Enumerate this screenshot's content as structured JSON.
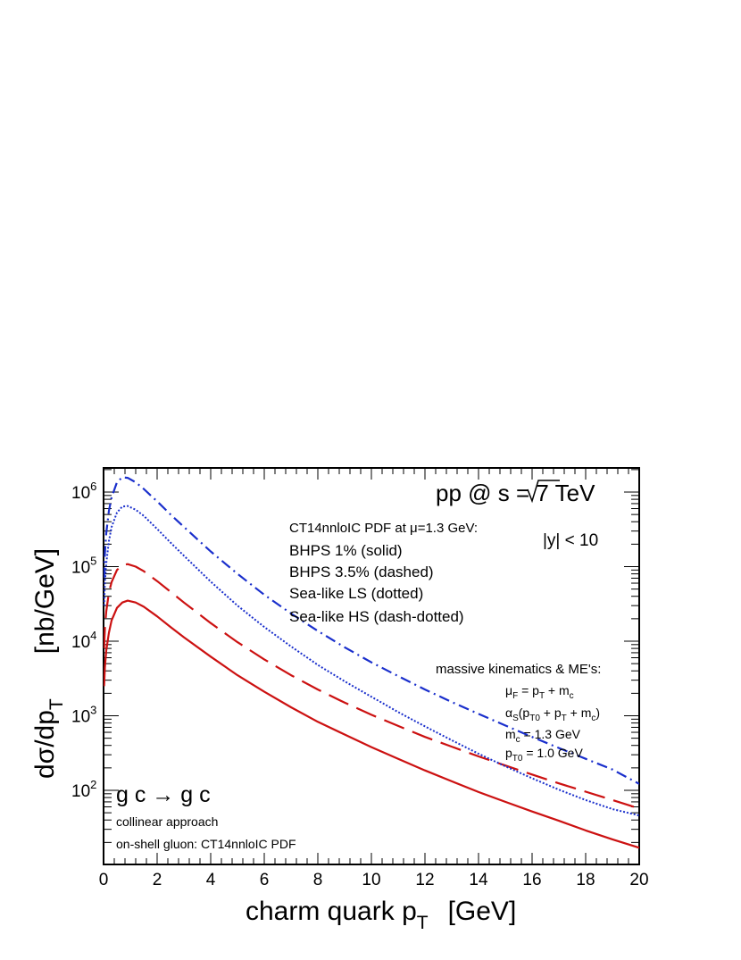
{
  "chart_data": {
    "type": "line",
    "title": "",
    "xlabel": "charm quark p",
    "xlabel_sub": "T",
    "xlabel_unit": "[GeV]",
    "ylabel": "dσ/dp",
    "ylabel_sub": "T",
    "ylabel_unit": "[nb/GeV]",
    "xlim": [
      0,
      20
    ],
    "ylim": [
      10,
      2000000
    ],
    "yscale": "log",
    "x_ticks": [
      "0",
      "2",
      "4",
      "6",
      "8",
      "10",
      "12",
      "14",
      "16",
      "18",
      "20"
    ],
    "y_ticks": [
      {
        "base": "10",
        "exp": "2",
        "value": 100
      },
      {
        "base": "10",
        "exp": "3",
        "value": 1000
      },
      {
        "base": "10",
        "exp": "4",
        "value": 10000
      },
      {
        "base": "10",
        "exp": "5",
        "value": 100000
      },
      {
        "base": "10",
        "exp": "6",
        "value": 1000000
      }
    ],
    "grid": false,
    "legend_position": "top-center",
    "series": [
      {
        "name": "BHPS 1% (solid)",
        "color": "#cc1111",
        "dash": "solid",
        "x": [
          0.02,
          0.05,
          0.1,
          0.2,
          0.3,
          0.5,
          0.7,
          0.9,
          1.2,
          1.5,
          2,
          2.5,
          3,
          4,
          5,
          6,
          7,
          8,
          9,
          10,
          11,
          12,
          13,
          14,
          15,
          16,
          17,
          18,
          19,
          20
        ],
        "y": [
          2500,
          4500,
          7500,
          13000,
          19000,
          28000,
          33000,
          35000,
          33000,
          29000,
          21500,
          15500,
          11300,
          6200,
          3500,
          2100,
          1300,
          830,
          560,
          380,
          265,
          185,
          132,
          95,
          70,
          52,
          39,
          29,
          22,
          17
        ]
      },
      {
        "name": "BHPS 3.5% (dashed)",
        "color": "#cc1111",
        "dash": "dashed",
        "x": [
          0.02,
          0.05,
          0.1,
          0.2,
          0.3,
          0.5,
          0.7,
          0.9,
          1.2,
          1.5,
          2,
          2.5,
          3,
          4,
          5,
          6,
          7,
          8,
          9,
          10,
          11,
          12,
          13,
          14,
          15,
          16,
          17,
          18,
          19,
          20
        ],
        "y": [
          8000,
          15000,
          25000,
          45000,
          62000,
          90000,
          105000,
          108000,
          100000,
          87000,
          64000,
          46000,
          33000,
          17500,
          9700,
          5700,
          3500,
          2250,
          1500,
          1030,
          730,
          520,
          385,
          285,
          215,
          163,
          124,
          96,
          74,
          57
        ]
      },
      {
        "name": "Sea-like LS (dotted)",
        "color": "#1a2fcc",
        "dash": "dotted",
        "x": [
          0.02,
          0.05,
          0.1,
          0.2,
          0.3,
          0.5,
          0.7,
          0.9,
          1.2,
          1.5,
          2,
          2.5,
          3,
          4,
          5,
          6,
          7,
          8,
          9,
          10,
          11,
          12,
          13,
          14,
          15,
          16,
          17,
          18,
          19,
          20
        ],
        "y": [
          30000,
          60000,
          110000,
          220000,
          340000,
          530000,
          640000,
          650000,
          580000,
          480000,
          320000,
          210000,
          140000,
          63000,
          30000,
          15500,
          8500,
          4800,
          2900,
          1800,
          1120,
          720,
          470,
          310,
          210,
          145,
          102,
          74,
          56,
          46
        ]
      },
      {
        "name": "Sea-like HS (dash-dotted)",
        "color": "#1a2fcc",
        "dash": "dash-dotted",
        "x": [
          0.02,
          0.05,
          0.1,
          0.2,
          0.3,
          0.5,
          0.7,
          0.9,
          1.2,
          1.5,
          2,
          2.5,
          3,
          4,
          5,
          6,
          7,
          8,
          9,
          10,
          11,
          12,
          13,
          14,
          15,
          16,
          17,
          18,
          19,
          20
        ],
        "y": [
          70000,
          150000,
          280000,
          560000,
          850000,
          1350000,
          1580000,
          1550000,
          1350000,
          1100000,
          750000,
          500000,
          340000,
          160000,
          80000,
          42000,
          23500,
          13700,
          8300,
          5200,
          3400,
          2250,
          1530,
          1060,
          740,
          520,
          370,
          265,
          190,
          122
        ]
      }
    ],
    "annotations": {
      "energy_pre": "pp @ ",
      "energy_s": "s",
      "energy_post": " = 7 TeV",
      "rapidity": "|y| < 10",
      "pdf_line": "CT14nnloIC PDF at μ=1.3 GeV:",
      "process": "g c → g c",
      "approach": "collinear approach",
      "gluon": "on-shell gluon: CT14nnloIC PDF",
      "kin_title": "massive kinematics & ME's:",
      "kin_muF": "μ",
      "kin_muF_sub": "F",
      "kin_muF_rest": " = p",
      "kin_alpha": "α",
      "kin_alpha_sub": "S",
      "kin_mc": "m",
      "kin_mc_sub": "c",
      "kin_mc_val": " = 1.3 GeV",
      "kin_pt0": "p",
      "kin_pt0_sub": "T0",
      "kin_pt0_val": " = 1.0 GeV"
    }
  }
}
